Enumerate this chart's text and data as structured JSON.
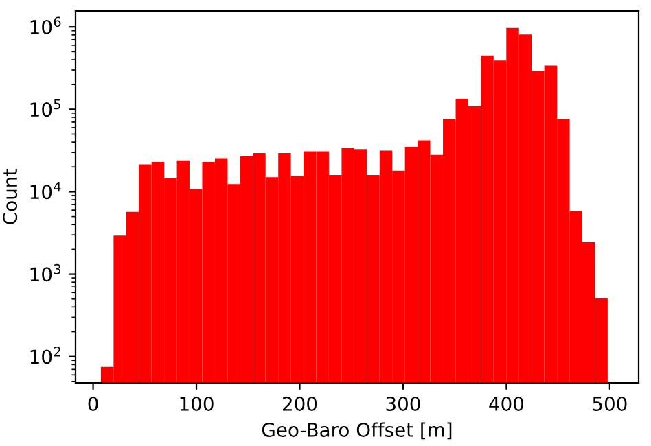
{
  "chart_data": {
    "type": "histogram",
    "xlabel": "Geo-Baro Offset [m]",
    "ylabel": "Count",
    "color": "#ff0000",
    "log": "y",
    "bins": [
      7.5,
      19.8,
      32.0,
      44.3,
      56.6,
      68.8,
      81.1,
      93.3,
      105.6,
      117.9,
      130.1,
      142.4,
      154.7,
      166.9,
      179.2,
      191.4,
      203.7,
      216.0,
      228.2,
      240.5,
      252.8,
      265.0,
      277.3,
      289.5,
      301.8,
      314.1,
      326.3,
      338.6,
      350.9,
      363.1,
      375.4,
      387.6,
      399.9,
      412.2,
      424.4,
      436.7,
      449.0,
      461.2,
      473.5,
      485.7,
      498.0
    ],
    "values": [
      75,
      2950,
      5700,
      21500,
      23000,
      14500,
      24000,
      10800,
      23000,
      25500,
      12400,
      27000,
      29500,
      15000,
      29500,
      15500,
      31000,
      31000,
      16000,
      34000,
      33000,
      16000,
      31500,
      18000,
      35000,
      42000,
      28000,
      77000,
      134000,
      109000,
      450000,
      390000,
      970000,
      810000,
      290000,
      340000,
      77000,
      5900,
      2450,
      510
    ],
    "xlim": [
      -17,
      528
    ],
    "xticks": [
      0,
      100,
      200,
      300,
      400,
      500
    ],
    "ylim": [
      48,
      1560000
    ],
    "yticks": [
      {
        "value": 100,
        "label": "10$^{2}$"
      },
      {
        "value": 1000,
        "label": "10$^{3}$"
      },
      {
        "value": 10000,
        "label": "10$^{4}$"
      },
      {
        "value": 100000,
        "label": "10$^{5}$"
      },
      {
        "value": 1000000,
        "label": "10$^{6}$"
      }
    ],
    "grid": false,
    "legend": false
  }
}
